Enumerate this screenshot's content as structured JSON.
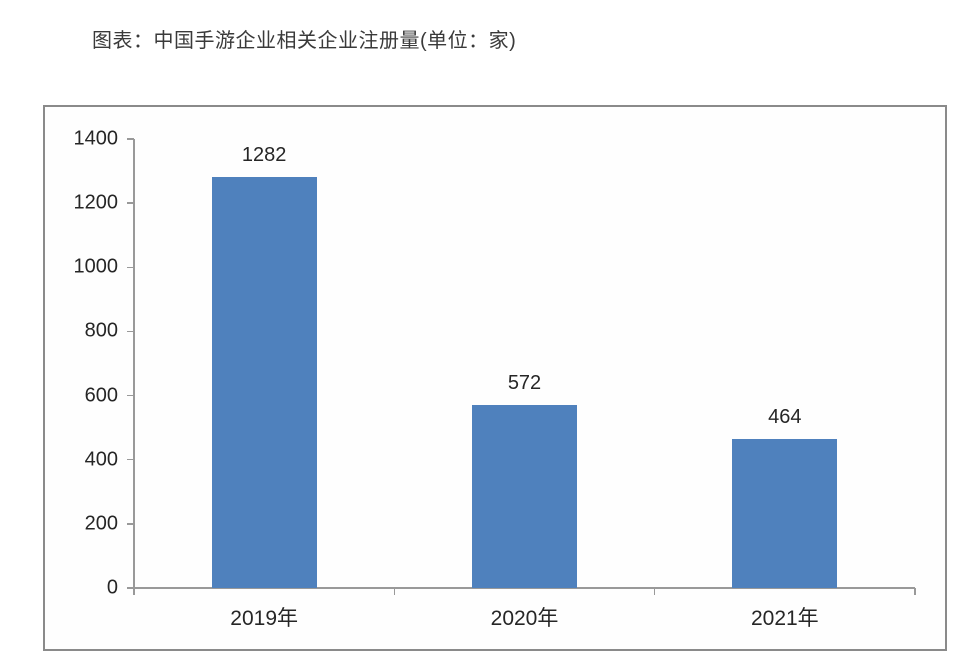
{
  "chart_data": {
    "type": "bar",
    "title": "图表：中国手游企业相关企业注册量(单位：家)",
    "categories": [
      "2019年",
      "2020年",
      "2021年"
    ],
    "values": [
      1282,
      572,
      464
    ],
    "xlabel": "",
    "ylabel": "",
    "ylim": [
      0,
      1400
    ],
    "ytick_step": 200,
    "yticks": [
      0,
      200,
      400,
      600,
      800,
      1000,
      1200,
      1400
    ],
    "grid": false,
    "legend_position": "none",
    "colors": {
      "bar_fill": "#4f81bd",
      "axis_line": "#999999",
      "frame_border": "#8a8a8a",
      "text": "#262626",
      "title_text": "#3a3a3a",
      "background": "#ffffff"
    }
  }
}
